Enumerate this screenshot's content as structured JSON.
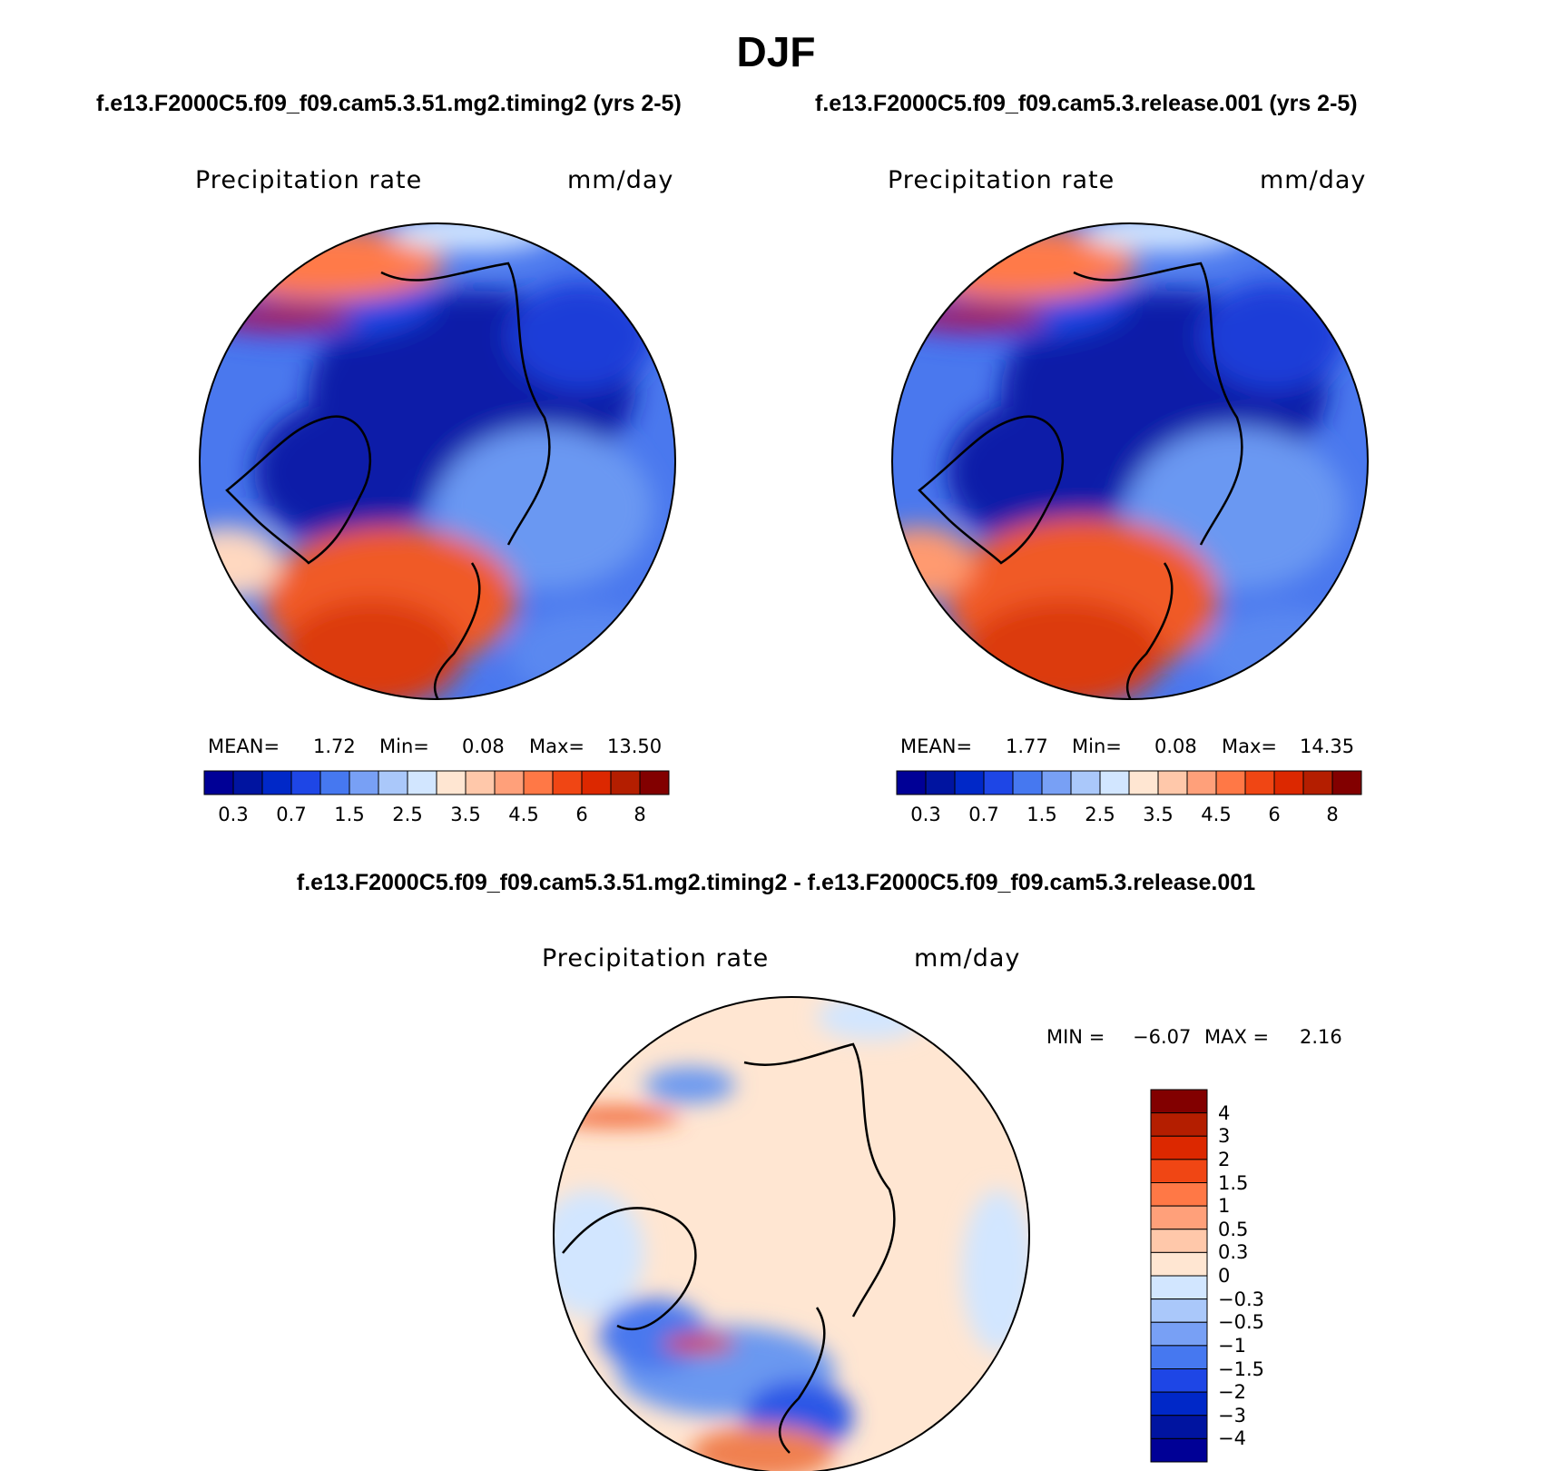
{
  "title": "DJF",
  "panels": [
    {
      "case": "f.e13.F2000C5.f09_f09.cam5.3.51.mg2.timing2 (yrs 2-5)",
      "variable": "Precipitation rate",
      "units": "mm/day",
      "stats": {
        "mean_label": "MEAN=",
        "mean": "1.72",
        "min_label": "Min=",
        "min": "0.08",
        "max_label": "Max=",
        "max": "13.50"
      }
    },
    {
      "case": "f.e13.F2000C5.f09_f09.cam5.3.release.001 (yrs 2-5)",
      "variable": "Precipitation rate",
      "units": "mm/day",
      "stats": {
        "mean_label": "MEAN=",
        "mean": "1.77",
        "min_label": "Min=",
        "min": "0.08",
        "max_label": "Max=",
        "max": "14.35"
      }
    }
  ],
  "difference": {
    "title": "f.e13.F2000C5.f09_f09.cam5.3.51.mg2.timing2 - f.e13.F2000C5.f09_f09.cam5.3.release.001",
    "variable": "Precipitation rate",
    "units": "mm/day",
    "min_label": "MIN =",
    "min": "−6.07",
    "max_label": "MAX =",
    "max": "2.16"
  },
  "chart_data": [
    {
      "type": "heatmap",
      "projection": "north-polar-stereographic",
      "title": "Precipitation rate",
      "units": "mm/day",
      "mean": 1.72,
      "min": 0.08,
      "max": 13.5,
      "colorbar": {
        "tick_labels": [
          "0.3",
          "0.7",
          "1.5",
          "2.5",
          "3.5",
          "4.5",
          "6",
          "8"
        ],
        "colors": [
          "#000096",
          "#0014a0",
          "#0028c8",
          "#1e46e6",
          "#4678f0",
          "#78a0f5",
          "#aac8fa",
          "#d2e6ff",
          "#ffe6d2",
          "#ffc8aa",
          "#ffa07a",
          "#ff7846",
          "#f04614",
          "#dc2800",
          "#b41e00",
          "#820000"
        ]
      }
    },
    {
      "type": "heatmap",
      "projection": "north-polar-stereographic",
      "title": "Precipitation rate",
      "units": "mm/day",
      "mean": 1.77,
      "min": 0.08,
      "max": 14.35,
      "colorbar": {
        "tick_labels": [
          "0.3",
          "0.7",
          "1.5",
          "2.5",
          "3.5",
          "4.5",
          "6",
          "8"
        ],
        "colors": [
          "#000096",
          "#0014a0",
          "#0028c8",
          "#1e46e6",
          "#4678f0",
          "#78a0f5",
          "#aac8fa",
          "#d2e6ff",
          "#ffe6d2",
          "#ffc8aa",
          "#ffa07a",
          "#ff7846",
          "#f04614",
          "#dc2800",
          "#b41e00",
          "#820000"
        ]
      }
    },
    {
      "type": "heatmap",
      "projection": "north-polar-stereographic",
      "title": "Precipitation rate",
      "units": "mm/day",
      "min": -6.07,
      "max": 2.16,
      "colorbar": {
        "orientation": "vertical",
        "tick_labels": [
          "4",
          "3",
          "2",
          "1.5",
          "1",
          "0.5",
          "0.3",
          "0",
          "−0.3",
          "−0.5",
          "−1",
          "−1.5",
          "−2",
          "−3",
          "−4"
        ],
        "colors": [
          "#820000",
          "#b41e00",
          "#dc2800",
          "#f04614",
          "#ff7846",
          "#ffa07a",
          "#ffc8aa",
          "#ffe6d2",
          "#d2e6ff",
          "#aac8fa",
          "#78a0f5",
          "#4678f0",
          "#1e46e6",
          "#0028c8",
          "#0014a0",
          "#000096"
        ]
      }
    }
  ]
}
